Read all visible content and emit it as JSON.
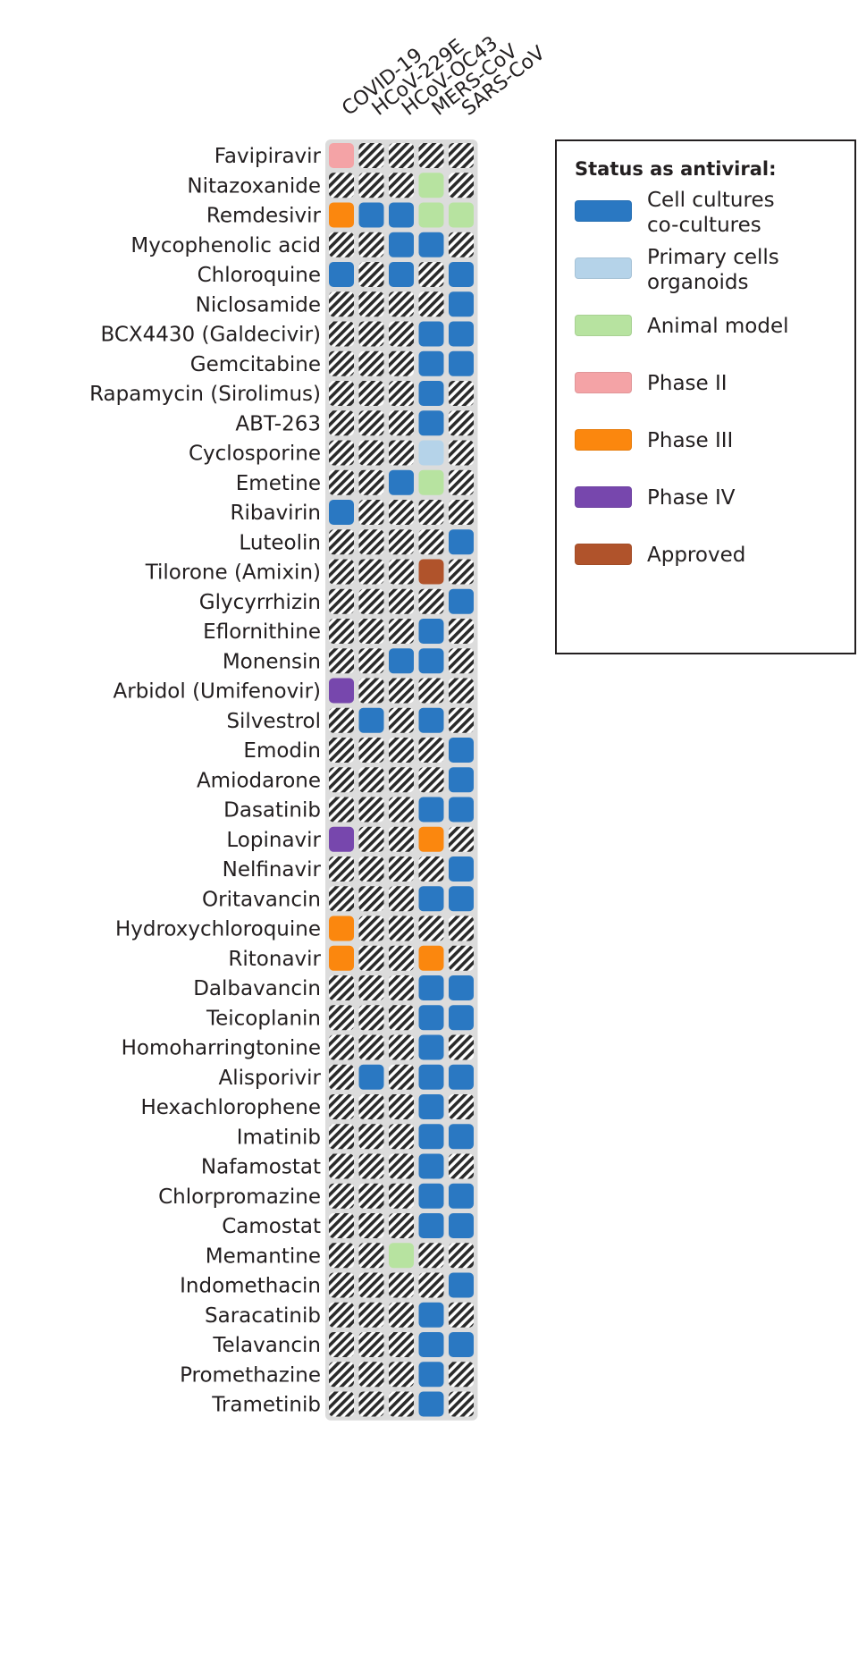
{
  "chart_data": {
    "type": "heatmap",
    "columns": [
      "COVID-19",
      "HCoV-229E",
      "HCoV-OC43",
      "MERS-CoV",
      "SARS-CoV"
    ],
    "rows": [
      {
        "drug": "Favipiravir",
        "status": [
          "Phase II",
          null,
          null,
          null,
          null
        ]
      },
      {
        "drug": "Nitazoxanide",
        "status": [
          null,
          null,
          null,
          "Animal model",
          null
        ]
      },
      {
        "drug": "Remdesivir",
        "status": [
          "Phase III",
          "Cell cultures co-cultures",
          "Cell cultures co-cultures",
          "Animal model",
          "Animal model"
        ]
      },
      {
        "drug": "Mycophenolic acid",
        "status": [
          null,
          null,
          "Cell cultures co-cultures",
          "Cell cultures co-cultures",
          null
        ]
      },
      {
        "drug": "Chloroquine",
        "status": [
          "Cell cultures co-cultures",
          null,
          "Cell cultures co-cultures",
          null,
          "Cell cultures co-cultures"
        ]
      },
      {
        "drug": "Niclosamide",
        "status": [
          null,
          null,
          null,
          null,
          "Cell cultures co-cultures"
        ]
      },
      {
        "drug": "BCX4430 (Galdecivir)",
        "status": [
          null,
          null,
          null,
          "Cell cultures co-cultures",
          "Cell cultures co-cultures"
        ]
      },
      {
        "drug": "Gemcitabine",
        "status": [
          null,
          null,
          null,
          "Cell cultures co-cultures",
          "Cell cultures co-cultures"
        ]
      },
      {
        "drug": "Rapamycin (Sirolimus)",
        "status": [
          null,
          null,
          null,
          "Cell cultures co-cultures",
          null
        ]
      },
      {
        "drug": "ABT-263",
        "status": [
          null,
          null,
          null,
          "Cell cultures co-cultures",
          null
        ]
      },
      {
        "drug": "Cyclosporine",
        "status": [
          null,
          null,
          null,
          "Primary cells organoids",
          null
        ]
      },
      {
        "drug": "Emetine",
        "status": [
          null,
          null,
          "Cell cultures co-cultures",
          "Animal model",
          null
        ]
      },
      {
        "drug": "Ribavirin",
        "status": [
          "Cell cultures co-cultures",
          null,
          null,
          null,
          null
        ]
      },
      {
        "drug": "Luteolin",
        "status": [
          null,
          null,
          null,
          null,
          "Cell cultures co-cultures"
        ]
      },
      {
        "drug": "Tilorone (Amixin)",
        "status": [
          null,
          null,
          null,
          "Approved",
          null
        ]
      },
      {
        "drug": "Glycyrrhizin",
        "status": [
          null,
          null,
          null,
          null,
          "Cell cultures co-cultures"
        ]
      },
      {
        "drug": "Eflornithine",
        "status": [
          null,
          null,
          null,
          "Cell cultures co-cultures",
          null
        ]
      },
      {
        "drug": "Monensin",
        "status": [
          null,
          null,
          "Cell cultures co-cultures",
          "Cell cultures co-cultures",
          null
        ]
      },
      {
        "drug": "Arbidol (Umifenovir)",
        "status": [
          "Phase IV",
          null,
          null,
          null,
          null
        ]
      },
      {
        "drug": "Silvestrol",
        "status": [
          null,
          "Cell cultures co-cultures",
          null,
          "Cell cultures co-cultures",
          null
        ]
      },
      {
        "drug": "Emodin",
        "status": [
          null,
          null,
          null,
          null,
          "Cell cultures co-cultures"
        ]
      },
      {
        "drug": "Amiodarone",
        "status": [
          null,
          null,
          null,
          null,
          "Cell cultures co-cultures"
        ]
      },
      {
        "drug": "Dasatinib",
        "status": [
          null,
          null,
          null,
          "Cell cultures co-cultures",
          "Cell cultures co-cultures"
        ]
      },
      {
        "drug": "Lopinavir",
        "status": [
          "Phase IV",
          null,
          null,
          "Phase III",
          null
        ]
      },
      {
        "drug": "Nelfinavir",
        "status": [
          null,
          null,
          null,
          null,
          "Cell cultures co-cultures"
        ]
      },
      {
        "drug": "Oritavancin",
        "status": [
          null,
          null,
          null,
          "Cell cultures co-cultures",
          "Cell cultures co-cultures"
        ]
      },
      {
        "drug": "Hydroxychloroquine",
        "status": [
          "Phase III",
          null,
          null,
          null,
          null
        ]
      },
      {
        "drug": "Ritonavir",
        "status": [
          "Phase III",
          null,
          null,
          "Phase III",
          null
        ]
      },
      {
        "drug": "Dalbavancin",
        "status": [
          null,
          null,
          null,
          "Cell cultures co-cultures",
          "Cell cultures co-cultures"
        ]
      },
      {
        "drug": "Teicoplanin",
        "status": [
          null,
          null,
          null,
          "Cell cultures co-cultures",
          "Cell cultures co-cultures"
        ]
      },
      {
        "drug": "Homoharringtonine",
        "status": [
          null,
          null,
          null,
          "Cell cultures co-cultures",
          null
        ]
      },
      {
        "drug": "Alisporivir",
        "status": [
          null,
          "Cell cultures co-cultures",
          null,
          "Cell cultures co-cultures",
          "Cell cultures co-cultures"
        ]
      },
      {
        "drug": "Hexachlorophene",
        "status": [
          null,
          null,
          null,
          "Cell cultures co-cultures",
          null
        ]
      },
      {
        "drug": "Imatinib",
        "status": [
          null,
          null,
          null,
          "Cell cultures co-cultures",
          "Cell cultures co-cultures"
        ]
      },
      {
        "drug": "Nafamostat",
        "status": [
          null,
          null,
          null,
          "Cell cultures co-cultures",
          null
        ]
      },
      {
        "drug": "Chlorpromazine",
        "status": [
          null,
          null,
          null,
          "Cell cultures co-cultures",
          "Cell cultures co-cultures"
        ]
      },
      {
        "drug": "Camostat",
        "status": [
          null,
          null,
          null,
          "Cell cultures co-cultures",
          "Cell cultures co-cultures"
        ]
      },
      {
        "drug": "Memantine",
        "status": [
          null,
          null,
          "Animal model",
          null,
          null
        ]
      },
      {
        "drug": "Indomethacin",
        "status": [
          null,
          null,
          null,
          null,
          "Cell cultures co-cultures"
        ]
      },
      {
        "drug": "Saracatinib",
        "status": [
          null,
          null,
          null,
          "Cell cultures co-cultures",
          null
        ]
      },
      {
        "drug": "Telavancin",
        "status": [
          null,
          null,
          null,
          "Cell cultures co-cultures",
          "Cell cultures co-cultures"
        ]
      },
      {
        "drug": "Promethazine",
        "status": [
          null,
          null,
          null,
          "Cell cultures co-cultures",
          null
        ]
      },
      {
        "drug": "Trametinib",
        "status": [
          null,
          null,
          null,
          "Cell cultures co-cultures",
          null
        ]
      }
    ],
    "legend": {
      "title": "Status as antiviral:",
      "items": [
        {
          "key": "Cell cultures co-cultures",
          "label": "Cell cultures\nco-cultures",
          "color": "#2a78c2"
        },
        {
          "key": "Primary cells organoids",
          "label": "Primary cells\norganoids",
          "color": "#b5d3e9"
        },
        {
          "key": "Animal model",
          "label": "Animal model",
          "color": "#b7e3a0"
        },
        {
          "key": "Phase II",
          "label": "Phase II",
          "color": "#f4a3a6"
        },
        {
          "key": "Phase III",
          "label": "Phase III",
          "color": "#fb870e"
        },
        {
          "key": "Phase IV",
          "label": "Phase IV",
          "color": "#7747ad"
        },
        {
          "key": "Approved",
          "label": "Approved",
          "color": "#b0532b"
        }
      ]
    },
    "empty_cell_style": "hatched"
  }
}
